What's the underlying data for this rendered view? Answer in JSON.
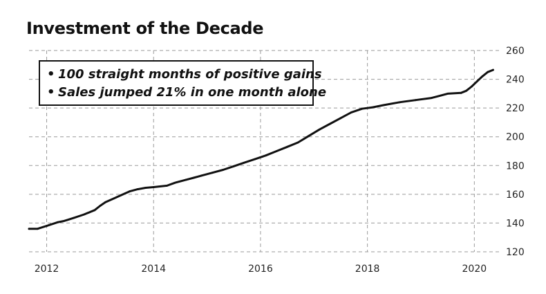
{
  "chart_data": {
    "type": "line",
    "title": "Investment of the Decade",
    "xlabel": "",
    "ylabel": "",
    "xlim": [
      2011.67,
      2020.5
    ],
    "ylim": [
      120,
      260
    ],
    "x_ticks": [
      "2012",
      "2014",
      "2016",
      "2018",
      "2020"
    ],
    "y_ticks": [
      "120",
      "140",
      "160",
      "180",
      "200",
      "220",
      "240",
      "260"
    ],
    "grid": true,
    "y_axis_position": "right",
    "annotations": [
      "100 straight months of positive gains",
      "Sales jumped 21% in one month alone"
    ],
    "series": [
      {
        "color": "#111111",
        "x": [
          2011.67,
          2011.83,
          2012.0,
          2012.2,
          2012.33,
          2012.5,
          2012.7,
          2012.9,
          2013.0,
          2013.1,
          2013.25,
          2013.4,
          2013.55,
          2013.7,
          2013.85,
          2014.0,
          2014.25,
          2014.4,
          2014.6,
          2014.75,
          2014.9,
          2015.1,
          2015.3,
          2015.5,
          2015.7,
          2015.9,
          2016.1,
          2016.3,
          2016.5,
          2016.7,
          2016.9,
          2017.1,
          2017.3,
          2017.5,
          2017.7,
          2017.9,
          2018.1,
          2018.3,
          2018.6,
          2018.9,
          2019.2,
          2019.5,
          2019.75,
          2019.85,
          2019.95,
          2020.05,
          2020.15,
          2020.25,
          2020.35
        ],
        "values": [
          136,
          136,
          138,
          140.5,
          141.5,
          143.5,
          146,
          149,
          152,
          154.5,
          157,
          159.5,
          162,
          163.5,
          164.5,
          165,
          166,
          168,
          170,
          171.5,
          173,
          175,
          177,
          179.5,
          182,
          184.5,
          187,
          190,
          193,
          196,
          200.5,
          205,
          209,
          213,
          217,
          219.5,
          220.5,
          222,
          224,
          225.5,
          227,
          230,
          230.5,
          232,
          235,
          238.5,
          242,
          245,
          246.5
        ]
      }
    ]
  }
}
